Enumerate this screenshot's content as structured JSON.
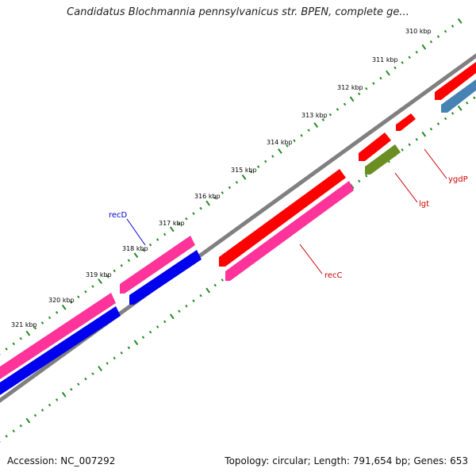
{
  "title": "Candidatus Blochmannia pennsylvanicus str. BPEN, complete ge...",
  "footer": {
    "accession": "Accession: NC_007292",
    "summary": "Topology: circular; Length: 791,654 bp; Genes: 653"
  },
  "map": {
    "ticks": [
      "310 kbp",
      "311 kbp",
      "312 kbp",
      "313 kbp",
      "314 kbp",
      "315 kbp",
      "316 kbp",
      "317 kbp",
      "318 kbp",
      "319 kbp",
      "320 kbp",
      "321 kbp"
    ],
    "gene_labels": [
      {
        "name": "recD",
        "color": "#0000cc"
      },
      {
        "name": "recC",
        "color": "#cc0000"
      },
      {
        "name": "lgt",
        "color": "#cc0000"
      },
      {
        "name": "ygdP",
        "color": "#cc0000"
      }
    ],
    "colors": {
      "forward_gene": "#ff0000",
      "reverse_gene": "#ff3399",
      "blue_gene": "#0000ee",
      "steelblue_gene": "#4682b4",
      "olive_gene": "#6b8e23",
      "backbone": "#808080",
      "tick": "#228b22"
    }
  }
}
